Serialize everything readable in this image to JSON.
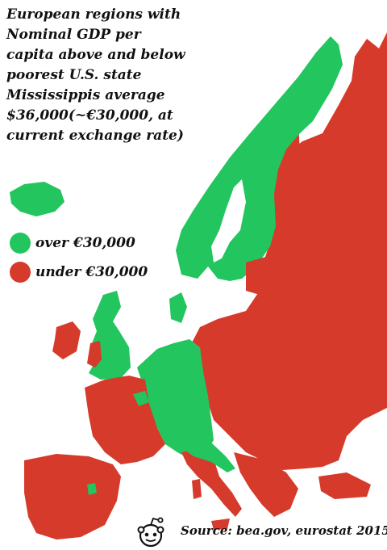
{
  "title_lines": [
    "European regions with",
    "Nominal GDP per",
    "capita above and below",
    "poorest U.S. state",
    "Mississippis average",
    "$36,000(~€30,000, at",
    "current exchange rate)"
  ],
  "legend": {
    "over": {
      "label": "over €30,000",
      "color": "#22c55e"
    },
    "under": {
      "label": "under €30,000",
      "color": "#d63a2a"
    }
  },
  "source": "Source: bea.gov, eurostat 2015",
  "colors": {
    "above": "#22c55e",
    "below": "#d63a2a",
    "background": "#ffffff"
  },
  "logo": {
    "icon": "reddit-alien-icon"
  }
}
